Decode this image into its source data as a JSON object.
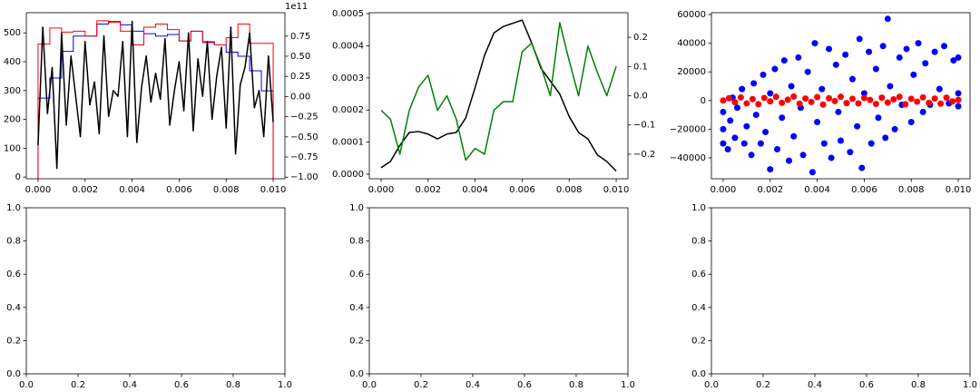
{
  "chart_data": [
    {
      "type": "line",
      "xlim": [
        -0.0005,
        0.0105
      ],
      "xticks": [
        {
          "value": 0,
          "label": "0.000"
        },
        {
          "value": 0.002,
          "label": "0.002"
        },
        {
          "value": 0.004,
          "label": "0.004"
        },
        {
          "value": 0.006,
          "label": "0.006"
        },
        {
          "value": 0.008,
          "label": "0.008"
        },
        {
          "value": 0.01,
          "label": "0.010"
        }
      ],
      "ylim": [
        -6,
        570
      ],
      "yticks": [
        0,
        100,
        200,
        300,
        400,
        500
      ],
      "y2lim": [
        -1.02,
        1.04
      ],
      "y2ticks": [
        {
          "value": -1,
          "label": "−1.00"
        },
        {
          "value": -0.75,
          "label": "−0.75"
        },
        {
          "value": -0.5,
          "label": "−0.50"
        },
        {
          "value": -0.25,
          "label": "−0.25"
        },
        {
          "value": 0,
          "label": "0.00"
        },
        {
          "value": 0.25,
          "label": "0.25"
        },
        {
          "value": 0.5,
          "label": "0.50"
        },
        {
          "value": 0.75,
          "label": "0.75"
        }
      ],
      "y2_offset": "1e11",
      "series": [
        {
          "type": "step",
          "axis": "y2",
          "color": "#0000ff",
          "bins": [
            0,
            0.0005,
            0.001,
            0.0015,
            0.002,
            0.0025,
            0.003,
            0.0035,
            0.004,
            0.0045,
            0.005,
            0.0055,
            0.006,
            0.0065,
            0.007,
            0.0075,
            0.008,
            0.0085,
            0.009,
            0.0095,
            0.01
          ],
          "values": [
            -0.02,
            0.23,
            0.56,
            0.75,
            0.75,
            0.9,
            0.93,
            0.89,
            0.81,
            0.78,
            0.75,
            0.77,
            0.69,
            0.81,
            0.68,
            0.64,
            0.55,
            0.5,
            0.32,
            0.07
          ]
        },
        {
          "type": "step",
          "axis": "y2",
          "color": "#ff0000",
          "bins": [
            0,
            0.0005,
            0.001,
            0.0015,
            0.002,
            0.0025,
            0.003,
            0.0035,
            0.004,
            0.0045,
            0.005,
            0.0055,
            0.006,
            0.0065,
            0.007,
            0.0075,
            0.008,
            0.0085,
            0.009,
            0.0095,
            0.01
          ],
          "values": [
            0.65,
            0.85,
            0.8,
            0.81,
            0.75,
            0.94,
            0.92,
            0.81,
            0.64,
            0.86,
            0.9,
            0.83,
            0.69,
            0.81,
            0.67,
            0.64,
            0.73,
            0.9,
            0.66,
            0.66
          ]
        },
        {
          "type": "line",
          "color": "#000000",
          "x": [
            0,
            0.0002,
            0.0004,
            0.0006,
            0.0008,
            0.001,
            0.0012,
            0.0014,
            0.0016,
            0.0018,
            0.002,
            0.0022,
            0.0024,
            0.0026,
            0.0028,
            0.003,
            0.0032,
            0.0034,
            0.0036,
            0.0038,
            0.004,
            0.0042,
            0.0044,
            0.0046,
            0.0048,
            0.005,
            0.0052,
            0.0054,
            0.0056,
            0.0058,
            0.006,
            0.0062,
            0.0064,
            0.0066,
            0.0068,
            0.007,
            0.0072,
            0.0074,
            0.0076,
            0.0078,
            0.008,
            0.0082,
            0.0084,
            0.0086,
            0.0088,
            0.009,
            0.0092,
            0.0094,
            0.0096,
            0.0098,
            0.01
          ],
          "values": [
            110,
            520,
            220,
            380,
            30,
            500,
            180,
            420,
            280,
            140,
            470,
            250,
            330,
            150,
            490,
            210,
            300,
            280,
            470,
            140,
            540,
            120,
            310,
            420,
            260,
            360,
            270,
            480,
            180,
            300,
            400,
            230,
            500,
            160,
            410,
            280,
            470,
            200,
            350,
            450,
            170,
            520,
            80,
            320,
            380,
            500,
            240,
            300,
            140,
            420,
            190
          ]
        }
      ]
    },
    {
      "type": "line",
      "xlim": [
        -0.0005,
        0.0105
      ],
      "xticks": [
        {
          "value": 0,
          "label": "0.000"
        },
        {
          "value": 0.002,
          "label": "0.002"
        },
        {
          "value": 0.004,
          "label": "0.004"
        },
        {
          "value": 0.006,
          "label": "0.006"
        },
        {
          "value": 0.008,
          "label": "0.008"
        },
        {
          "value": 0.01,
          "label": "0.010"
        }
      ],
      "ylim": [
        -1.41e-05,
        0.000503
      ],
      "yticks": [
        {
          "value": 0,
          "label": "0.0000"
        },
        {
          "value": 0.0001,
          "label": "0.0001"
        },
        {
          "value": 0.0002,
          "label": "0.0002"
        },
        {
          "value": 0.0003,
          "label": "0.0003"
        },
        {
          "value": 0.0004,
          "label": "0.0004"
        },
        {
          "value": 0.0005,
          "label": "0.0005"
        }
      ],
      "y2lim": [
        -0.284,
        0.284
      ],
      "y2ticks": [
        {
          "value": -0.2,
          "label": "−0.2"
        },
        {
          "value": -0.1,
          "label": "−0.1"
        },
        {
          "value": 0,
          "label": "0.0"
        },
        0.1,
        0.2
      ],
      "series": [
        {
          "type": "line",
          "color": "#000000",
          "x": [
            0,
            0.0004,
            0.0008,
            0.0012,
            0.0016,
            0.002,
            0.0024,
            0.0028,
            0.0032,
            0.0036,
            0.004,
            0.0044,
            0.0048,
            0.0052,
            0.0056,
            0.006,
            0.0064,
            0.0068,
            0.0072,
            0.0076,
            0.008,
            0.0084,
            0.0088,
            0.0092,
            0.0096,
            0.01
          ],
          "values": [
            2e-05,
            4e-05,
            9e-05,
            0.00013,
            0.000133,
            0.000125,
            0.00011,
            0.000125,
            0.00013,
            0.000175,
            0.00027,
            0.00037,
            0.00044,
            0.00046,
            0.00047,
            0.00048,
            0.00041,
            0.00033,
            0.00029,
            0.00025,
            0.00018,
            0.00013,
            0.00011,
            6e-05,
            4e-05,
            1e-05
          ]
        },
        {
          "type": "line",
          "axis": "y2",
          "color": "#008000",
          "x": [
            0,
            0.0004,
            0.0008,
            0.0012,
            0.0016,
            0.002,
            0.0024,
            0.0028,
            0.0032,
            0.0036,
            0.004,
            0.0044,
            0.0048,
            0.0052,
            0.0056,
            0.006,
            0.0064,
            0.0068,
            0.0072,
            0.0076,
            0.008,
            0.0084,
            0.0088,
            0.0092,
            0.0096,
            0.01
          ],
          "values": [
            -0.05,
            -0.08,
            -0.2,
            -0.05,
            0.03,
            0.07,
            -0.05,
            0.0,
            -0.08,
            -0.22,
            -0.18,
            -0.2,
            -0.05,
            -0.02,
            -0.02,
            0.15,
            0.18,
            0.1,
            0.0,
            0.25,
            0.12,
            0.0,
            0.17,
            0.08,
            0.0,
            0.1
          ]
        }
      ]
    },
    {
      "type": "scatter",
      "xlim": [
        -0.0005,
        0.0105
      ],
      "xticks": [
        {
          "value": 0,
          "label": "0.000"
        },
        {
          "value": 0.002,
          "label": "0.002"
        },
        {
          "value": 0.004,
          "label": "0.004"
        },
        {
          "value": 0.006,
          "label": "0.006"
        },
        {
          "value": 0.008,
          "label": "0.008"
        },
        {
          "value": 0.01,
          "label": "0.010"
        }
      ],
      "ylim": [
        -54600,
        61300
      ],
      "yticks": [
        {
          "value": -40000,
          "label": "−40000"
        },
        {
          "value": -20000,
          "label": "−20000"
        },
        0,
        20000,
        40000,
        60000
      ],
      "series": [
        {
          "color": "#0000ff",
          "x": [
            0,
            0,
            0,
            0.0002,
            0.0003,
            0.0004,
            0.0005,
            0.0006,
            0.0008,
            0.0009,
            0.001,
            0.0012,
            0.0013,
            0.0014,
            0.0016,
            0.0017,
            0.0018,
            0.002,
            0.002,
            0.0022,
            0.0023,
            0.0025,
            0.0026,
            0.0028,
            0.0029,
            0.003,
            0.0032,
            0.0033,
            0.0034,
            0.0036,
            0.0038,
            0.0039,
            0.004,
            0.0042,
            0.0043,
            0.0045,
            0.0046,
            0.0048,
            0.0049,
            0.005,
            0.0052,
            0.0054,
            0.0055,
            0.0057,
            0.0058,
            0.0059,
            0.006,
            0.0062,
            0.0063,
            0.0065,
            0.0066,
            0.0068,
            0.0069,
            0.007,
            0.0071,
            0.0073,
            0.0075,
            0.0076,
            0.0078,
            0.008,
            0.0081,
            0.0083,
            0.0085,
            0.0086,
            0.0088,
            0.009,
            0.0092,
            0.0094,
            0.0096,
            0.0098,
            0.01,
            0.01,
            0.01
          ],
          "values": [
            -30000,
            -8000,
            -20000,
            -34000,
            -14000,
            2000,
            -26000,
            -5000,
            8000,
            -30000,
            -18000,
            -38000,
            12000,
            -10000,
            -30000,
            18000,
            -22000,
            -48000,
            5000,
            22000,
            -34000,
            -12000,
            28000,
            -42000,
            10000,
            -25000,
            30000,
            -5000,
            -38000,
            20000,
            -50000,
            40000,
            -15000,
            8000,
            -30000,
            36000,
            -40000,
            25000,
            -8000,
            -28000,
            32000,
            -36000,
            15000,
            -18000,
            43000,
            -47000,
            5000,
            34000,
            -30000,
            22000,
            -12000,
            38000,
            -26000,
            57000,
            10000,
            -20000,
            30000,
            -3000,
            36000,
            -15000,
            18000,
            40000,
            -8000,
            26000,
            -3000,
            34000,
            8000,
            38000,
            -2000,
            28000,
            5000,
            30000,
            -4000
          ]
        },
        {
          "color": "#ff0000",
          "x": [
            0,
            0.00025,
            0.0005,
            0.00075,
            0.001,
            0.00125,
            0.0015,
            0.00175,
            0.002,
            0.00225,
            0.0025,
            0.00275,
            0.003,
            0.00325,
            0.0035,
            0.00375,
            0.004,
            0.00425,
            0.0045,
            0.00475,
            0.005,
            0.00525,
            0.0055,
            0.00575,
            0.006,
            0.00625,
            0.0065,
            0.00675,
            0.007,
            0.00725,
            0.0075,
            0.00775,
            0.008,
            0.00825,
            0.0085,
            0.00875,
            0.009,
            0.00925,
            0.0095,
            0.00975,
            0.01
          ],
          "values": [
            0,
            1600,
            -1200,
            2200,
            -2000,
            1000,
            -2600,
            1800,
            -600,
            2600,
            -1600,
            600,
            2800,
            -2200,
            1400,
            -1000,
            2400,
            -2800,
            1600,
            -400,
            2600,
            -1800,
            1200,
            -2000,
            1800,
            400,
            -2400,
            2000,
            -1400,
            800,
            2600,
            -2600,
            1200,
            -800,
            2200,
            -1600,
            1400,
            -2200,
            2000,
            -600,
            400
          ]
        }
      ]
    },
    {
      "type": "empty",
      "xlim": [
        0,
        1
      ],
      "xticks": [
        {
          "value": 0,
          "label": "0.0"
        },
        0.2,
        0.4,
        0.6,
        0.8,
        {
          "value": 1,
          "label": "1.0"
        }
      ],
      "ylim": [
        0,
        1
      ],
      "yticks": [
        {
          "value": 0,
          "label": "0.0"
        },
        0.2,
        0.4,
        0.6,
        0.8,
        {
          "value": 1,
          "label": "1.0"
        }
      ]
    },
    {
      "type": "empty",
      "xlim": [
        0,
        1
      ],
      "xticks": [
        {
          "value": 0,
          "label": "0.0"
        },
        0.2,
        0.4,
        0.6,
        0.8,
        {
          "value": 1,
          "label": "1.0"
        }
      ],
      "ylim": [
        0,
        1
      ],
      "yticks": [
        {
          "value": 0,
          "label": "0.0"
        },
        0.2,
        0.4,
        0.6,
        0.8,
        {
          "value": 1,
          "label": "1.0"
        }
      ]
    },
    {
      "type": "empty",
      "xlim": [
        0,
        1
      ],
      "xticks": [
        {
          "value": 0,
          "label": "0.0"
        },
        0.2,
        0.4,
        0.6,
        0.8,
        {
          "value": 1,
          "label": "1.0"
        }
      ],
      "ylim": [
        0,
        1
      ],
      "yticks": [
        {
          "value": 0,
          "label": "0.0"
        },
        0.2,
        0.4,
        0.6,
        0.8,
        {
          "value": 1,
          "label": "1.0"
        }
      ]
    }
  ]
}
